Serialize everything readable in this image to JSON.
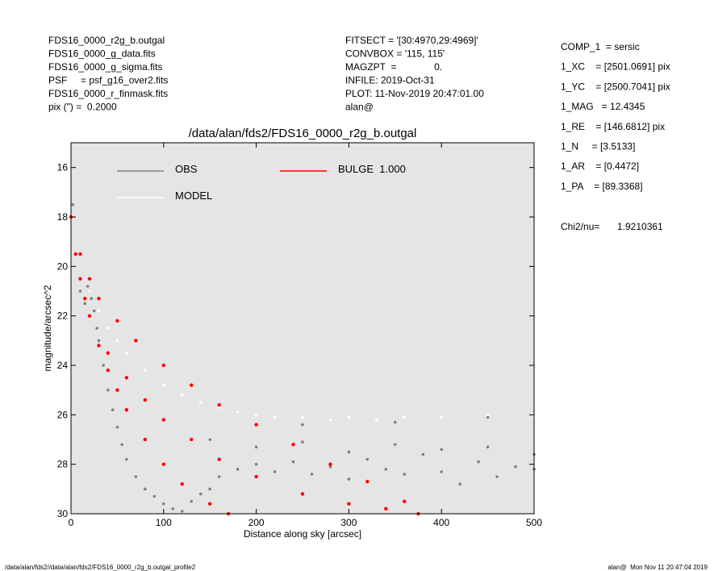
{
  "header": {
    "left": [
      "FDS16_0000_r2g_b.outgal",
      "FDS16_0000_g_data.fits",
      "FDS16_0000_g_sigma.fits",
      "PSF     = psf_g16_over2.fits",
      "FDS16_0000_r_finmask.fits",
      "pix (\") =  0.2000"
    ],
    "middle": [
      "FITSECT = '[30:4970,29:4969]'",
      "CONVBOX = '115, 115'",
      "MAGZPT  =              0.",
      "INFILE: 2019-Oct-31",
      "PLOT: 11-Nov-2019 20:47:01.00",
      "alan@"
    ],
    "right": [
      "COMP_1  = sersic",
      "1_XC    = [2501.0691] pix",
      "1_YC    = [2500.7041] pix",
      "1_MAG   = 12.4345",
      "1_RE    = [146.6812] pix",
      "1_N     = [3.5133]",
      "1_AR    = [0.4472]",
      "1_PA    = [89.3368]"
    ],
    "chi2_label": "Chi2/nu=",
    "chi2_value": "1.9210361"
  },
  "footer": {
    "left": "/data/alan/fds2//data/alan/fds2/FDS16_0000_r2g_b.outgal_profile2",
    "right": "alan@  Mon Nov 11 20:47:04 2019"
  },
  "chart_data": {
    "type": "scatter",
    "title": "/data/alan/fds2/FDS16_0000_r2g_b.outgal",
    "x_label": "Distance along sky [arcsec]",
    "y_label": "magnitude/arcsec^2",
    "xlim": [
      0,
      500
    ],
    "xticks": [
      0,
      100,
      200,
      300,
      400,
      500
    ],
    "ylim": [
      30,
      15
    ],
    "yticks": [
      16,
      18,
      20,
      22,
      24,
      26,
      28,
      30
    ],
    "grid": false,
    "background": "#e5e5e5",
    "series": [
      {
        "name": "OBS",
        "color": "#808080",
        "x": [
          2,
          5,
          10,
          15,
          18,
          20,
          22,
          25,
          28,
          30,
          35,
          40,
          45,
          50,
          55,
          60,
          70,
          80,
          90,
          100,
          110,
          120,
          130,
          140,
          150,
          160,
          180,
          200,
          220,
          240,
          260,
          280,
          300,
          320,
          340,
          360,
          380,
          400,
          420,
          440,
          460,
          480,
          500,
          150,
          200,
          250,
          300,
          350,
          400,
          450,
          500,
          250,
          350,
          450
        ],
        "y": [
          17.5,
          19.5,
          21,
          21.5,
          20.8,
          21,
          21.3,
          21.8,
          22.5,
          23,
          24,
          25,
          25.8,
          26.5,
          27.2,
          27.8,
          28.5,
          29,
          29.3,
          29.6,
          29.8,
          29.9,
          29.5,
          29.2,
          29,
          28.5,
          28.2,
          28,
          28.3,
          27.9,
          28.4,
          28.1,
          28.6,
          27.8,
          28.2,
          28.4,
          27.6,
          28.3,
          28.8,
          27.9,
          28.5,
          28.1,
          28.2,
          27,
          27.3,
          27.1,
          27.5,
          27.2,
          27.4,
          27.3,
          27.6,
          26.4,
          26.3,
          26.1
        ]
      },
      {
        "name": "MODEL",
        "color": "#ffffff",
        "x": [
          20,
          30,
          40,
          50,
          60,
          80,
          100,
          120,
          140,
          160,
          180,
          200,
          220,
          250,
          280,
          300,
          330,
          360,
          400,
          450,
          500
        ],
        "y": [
          21,
          21.8,
          22.5,
          23,
          23.5,
          24.2,
          24.8,
          25.2,
          25.5,
          25.7,
          25.9,
          26,
          26.1,
          26.1,
          26.2,
          26.1,
          26.2,
          26.1,
          26.1,
          26,
          26
        ]
      },
      {
        "name": "BULGE  1.000",
        "color": "#ff0000",
        "x": [
          0,
          5,
          10,
          15,
          20,
          30,
          40,
          50,
          60,
          80,
          100,
          120,
          150,
          170,
          10,
          20,
          30,
          50,
          70,
          100,
          130,
          160,
          200,
          240,
          280,
          320,
          360,
          375,
          40,
          60,
          80,
          100,
          130,
          160,
          200,
          250,
          300,
          340
        ],
        "y": [
          18,
          19.5,
          20.5,
          21.3,
          22,
          23.2,
          24.2,
          25,
          25.8,
          27,
          28,
          28.8,
          29.6,
          30,
          19.5,
          20.5,
          21.3,
          22.2,
          23,
          24,
          24.8,
          25.6,
          26.4,
          27.2,
          28,
          28.7,
          29.5,
          30,
          23.5,
          24.5,
          25.4,
          26.2,
          27,
          27.8,
          28.5,
          29.2,
          29.6,
          29.8
        ]
      }
    ]
  }
}
